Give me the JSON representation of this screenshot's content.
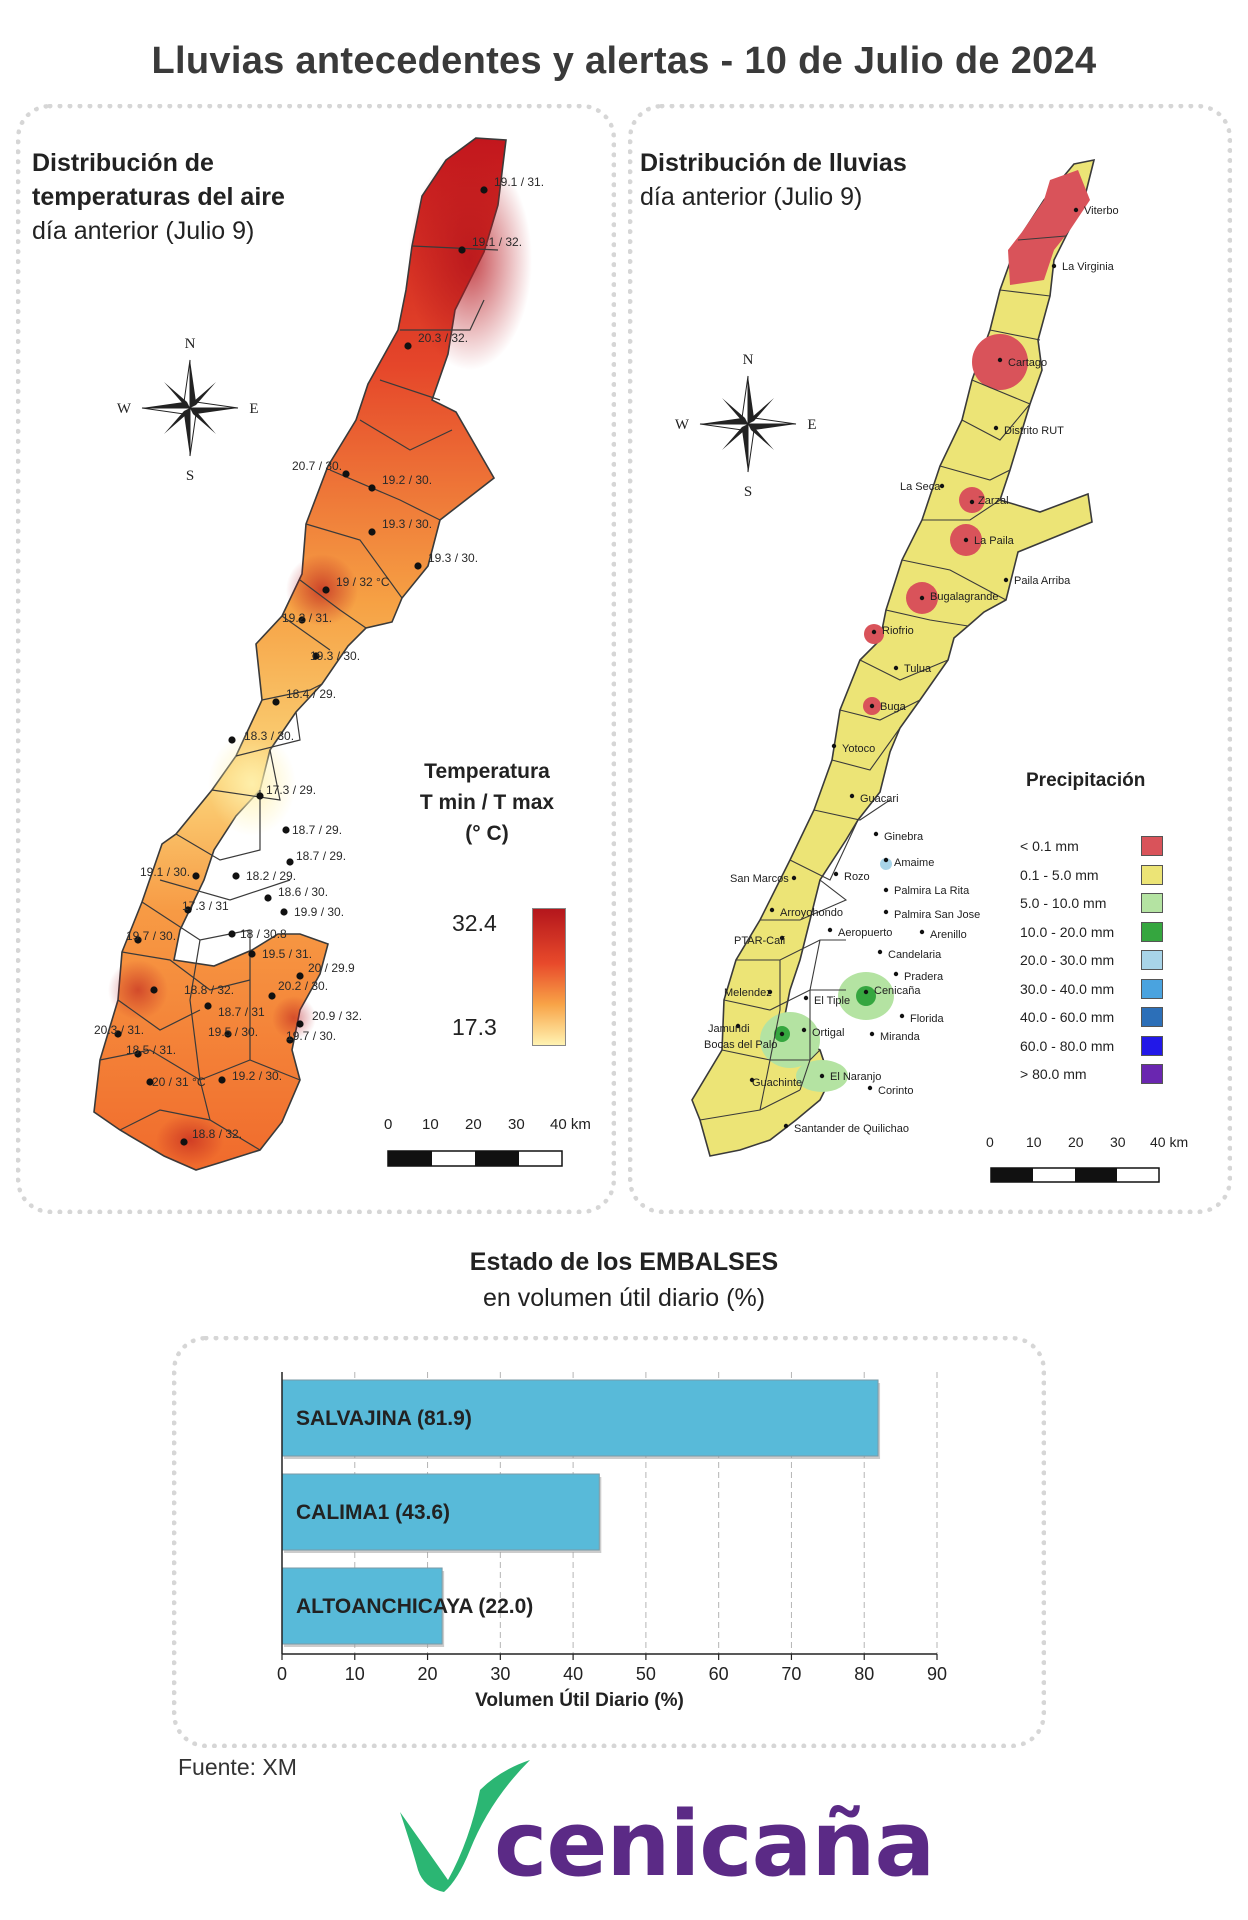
{
  "title": "Lluvias antecedentes y alertas - 10 de Julio de 2024",
  "temperature_map": {
    "title_line1": "Distribución de",
    "title_line2": "temperaturas del aire",
    "subtitle": "día anterior (Julio 9)",
    "compass": {
      "n": "N",
      "s": "S",
      "e": "E",
      "w": "W"
    },
    "legend": {
      "line1": "Temperatura",
      "line2": "T min / T max",
      "line3": "(° C)",
      "max": "32.4",
      "min": "17.3"
    },
    "scale": {
      "ticks": [
        "0",
        "10",
        "20",
        "30",
        "40 km"
      ]
    },
    "stations": [
      "19.1 / 31.",
      "19.1 / 32.",
      "20.3 / 32.",
      "20.7 / 30.",
      "19.2 / 30.",
      "19.3 / 30.",
      "19.3 / 30.",
      "19 / 32 °C",
      "19.2 / 31.",
      "19.3 / 30.",
      "18.4 / 29.",
      "18.3 / 30.",
      "17.3 / 29.",
      "18.7 / 29.",
      "18.7 / 29.",
      "19.1 / 30.",
      "18.2 / 29.",
      "18.6 / 30.",
      "17.3 / 31",
      "19.9 / 30.",
      "19.7 / 30.",
      "18 / 30.8",
      "19.5 / 31.",
      "20 / 29.9",
      "18.8 / 32.",
      "20.2 / 30.",
      "18.7 / 31",
      "20.9 / 32.",
      "20.3 / 31.",
      "19.5 / 30.",
      "19.7 / 30.",
      "18.5 / 31.",
      "20 / 31 °C",
      "19.2 / 30.",
      "18.8 / 32."
    ]
  },
  "rain_map": {
    "title_line1": "Distribución de lluvias",
    "subtitle": "día anterior (Julio 9)",
    "compass": {
      "n": "N",
      "s": "S",
      "e": "E",
      "w": "W"
    },
    "legend": {
      "title": "Precipitación",
      "classes": [
        {
          "label": "< 0.1 mm",
          "color": "#d9535a"
        },
        {
          "label": "0.1 - 5.0 mm",
          "color": "#ece476"
        },
        {
          "label": "5.0 - 10.0 mm",
          "color": "#b4e3a2"
        },
        {
          "label": "10.0 - 20.0 mm",
          "color": "#35a63f"
        },
        {
          "label": "20.0 - 30.0 mm",
          "color": "#a8d4e8"
        },
        {
          "label": "30.0 - 40.0 mm",
          "color": "#4aa3df"
        },
        {
          "label": "40.0 - 60.0 mm",
          "color": "#2c6fb8"
        },
        {
          "label": "60.0 - 80.0 mm",
          "color": "#2218e8"
        },
        {
          "label": "> 80.0 mm",
          "color": "#6a26b0"
        }
      ]
    },
    "scale": {
      "ticks": [
        "0",
        "10",
        "20",
        "30",
        "40 km"
      ]
    },
    "stations": [
      "Viterbo",
      "La Virginia",
      "Cartago",
      "Distrito RUT",
      "La Seca",
      "Zarzal",
      "La Paila",
      "Paila Arriba",
      "Bugalagrande",
      "Riofrio",
      "Tulua",
      "Buga",
      "Yotoco",
      "Guacari",
      "Ginebra",
      "Amaime",
      "San Marcos",
      "Rozo",
      "Palmira La Rita",
      "Arroyohondo",
      "Palmira San Jose",
      "Aeropuerto",
      "Arenillo",
      "PTAR-Cali",
      "Candelaria",
      "Pradera",
      "Melendez",
      "El Tiple",
      "Cenicaña",
      "Florida",
      "Jamundi",
      "Bocas del Palo",
      "Ortigal",
      "Miranda",
      "Guachinte",
      "El Naranjo",
      "Corinto",
      "Santander de Quilichao"
    ]
  },
  "reservoirs": {
    "title": "Estado de los EMBALSES",
    "subtitle": "en volumen útil diario (%)"
  },
  "chart_data": {
    "type": "bar",
    "orientation": "horizontal",
    "categories": [
      "SALVAJINA",
      "CALIMA1",
      "ALTOANCHICAYA"
    ],
    "values": [
      81.9,
      43.6,
      22.0
    ],
    "bar_labels": [
      "SALVAJINA (81.9)",
      "CALIMA1 (43.6)",
      "ALTOANCHICAYA (22.0)"
    ],
    "xlabel": "Volumen Útil Diario (%)",
    "xlim": [
      0,
      90
    ],
    "xticks": [
      "0",
      "10",
      "20",
      "30",
      "40",
      "50",
      "60",
      "70",
      "80",
      "90"
    ],
    "grid": true,
    "bar_color": "#58bad9"
  },
  "source": "Fuente: XM",
  "logo": {
    "text": "cenicaña",
    "color": "#5b2a86",
    "accent": "#2bb673"
  }
}
